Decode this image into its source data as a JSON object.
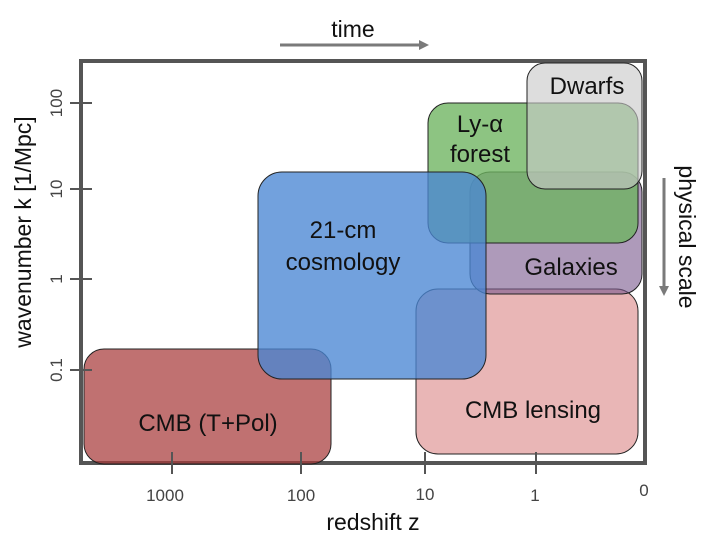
{
  "top_arrow": {
    "label": "time"
  },
  "side_arrow": {
    "label": "physical scale"
  },
  "x_axis": {
    "title": "redshift z",
    "ticks": [
      "1000",
      "100",
      "10",
      "1",
      "0"
    ]
  },
  "y_axis": {
    "title": "wavenumber k [1/Mpc]",
    "ticks": [
      "100",
      "10",
      "1",
      "0.1"
    ]
  },
  "regions": [
    {
      "label_lines": [
        "CMB (T+Pol)"
      ],
      "color": "#a83a3a"
    },
    {
      "label_lines": [
        "CMB lensing"
      ],
      "color": "#e3a2a2"
    },
    {
      "label_lines": [
        "Galaxies"
      ],
      "color": "#7d5c8f"
    },
    {
      "label_lines": [
        "Ly-α",
        "forest"
      ],
      "color": "#6db35f"
    },
    {
      "label_lines": [
        "Dwarfs"
      ],
      "color": "#c8c8c8"
    },
    {
      "label_lines": [
        "21-cm",
        "cosmology"
      ],
      "color": "#4a86d4"
    }
  ],
  "colors": {
    "frame": "#555555",
    "arrow": "#7a7a7a"
  }
}
